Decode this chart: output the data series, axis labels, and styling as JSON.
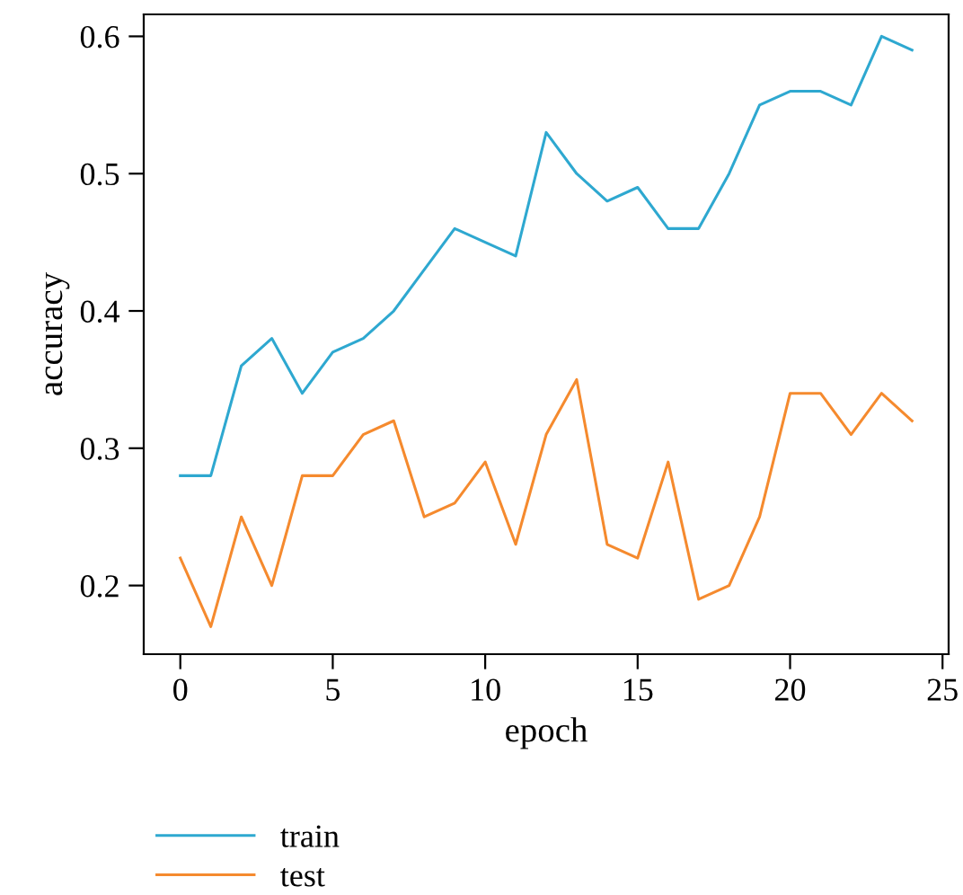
{
  "chart_data": {
    "type": "line",
    "xlabel": "epoch",
    "ylabel": "accuracy",
    "x": [
      0,
      1,
      2,
      3,
      4,
      5,
      6,
      7,
      8,
      9,
      10,
      11,
      12,
      13,
      14,
      15,
      16,
      17,
      18,
      19,
      20,
      21,
      22,
      23,
      24
    ],
    "series": [
      {
        "name": "train",
        "color": "#2ea8d0",
        "values": [
          0.28,
          0.28,
          0.36,
          0.38,
          0.34,
          0.37,
          0.38,
          0.4,
          0.43,
          0.46,
          0.45,
          0.44,
          0.53,
          0.5,
          0.48,
          0.49,
          0.46,
          0.46,
          0.5,
          0.55,
          0.56,
          0.56,
          0.55,
          0.6,
          0.59
        ]
      },
      {
        "name": "test",
        "color": "#f58a2e",
        "values": [
          0.22,
          0.17,
          0.25,
          0.2,
          0.28,
          0.28,
          0.31,
          0.32,
          0.25,
          0.26,
          0.29,
          0.23,
          0.31,
          0.35,
          0.23,
          0.22,
          0.29,
          0.19,
          0.2,
          0.25,
          0.34,
          0.34,
          0.31,
          0.34,
          0.32
        ]
      }
    ],
    "xlim": [
      -1.2,
      25.2
    ],
    "ylim": [
      0.15,
      0.616
    ],
    "xticks": [
      0,
      5,
      10,
      15,
      20,
      25
    ],
    "yticks": [
      0.2,
      0.3,
      0.4,
      0.5,
      0.6
    ],
    "grid": false,
    "legend": "bottom left",
    "marker": "none",
    "line_style": "solid"
  }
}
